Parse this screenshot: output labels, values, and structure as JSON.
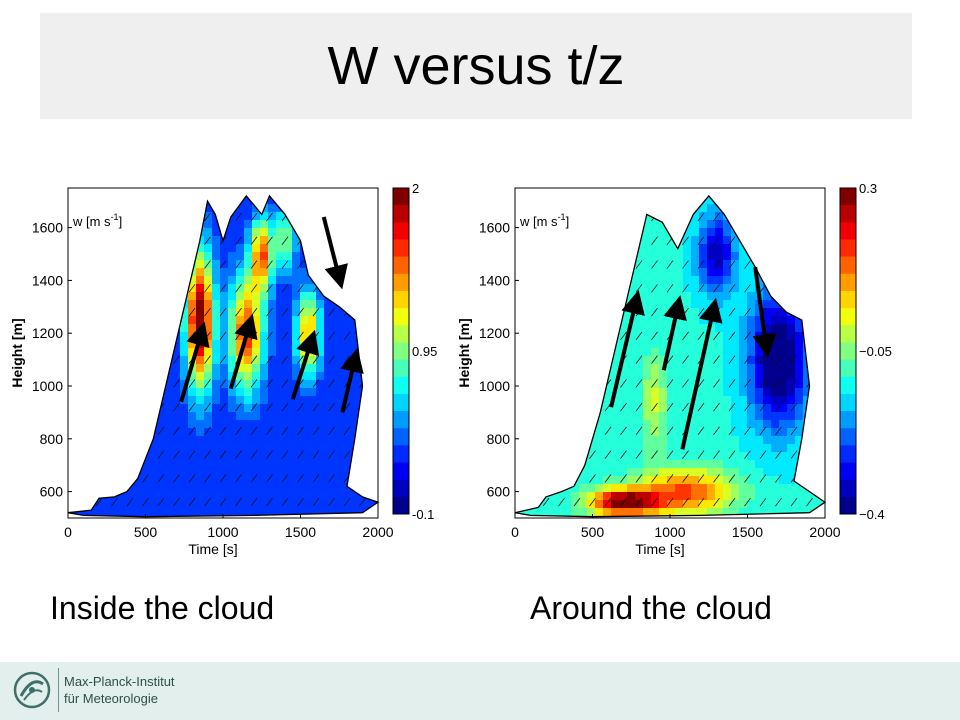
{
  "slide": {
    "title": "W versus t/z",
    "caption_left": "Inside the cloud",
    "caption_right": "Around the cloud",
    "institute_line1": "Max-Planck-Institut",
    "institute_line2": "für Meteorologie",
    "footer_color": "#e3efec"
  },
  "chart_data": [
    {
      "type": "heatmap",
      "panel_label": "w [m s",
      "panel_label_sup": "-1",
      "panel_label_end": "]",
      "xlabel": "Time [s]",
      "ylabel": "Height [m]",
      "xlim": [
        0,
        2000
      ],
      "ylim": [
        500,
        1750
      ],
      "xticks": [
        0,
        500,
        1000,
        1500,
        2000
      ],
      "yticks": [
        600,
        800,
        1000,
        1200,
        1400,
        1600
      ],
      "colorbar": {
        "min": -0.1,
        "max": 2,
        "tick_values": [
          2,
          0.95,
          -0.1
        ],
        "tick_labels": [
          "2",
          "0.95",
          "-0.1"
        ]
      },
      "cloud_outline": [
        [
          0,
          520
        ],
        [
          150,
          530
        ],
        [
          200,
          575
        ],
        [
          300,
          580
        ],
        [
          380,
          600
        ],
        [
          450,
          650
        ],
        [
          550,
          800
        ],
        [
          650,
          1050
        ],
        [
          750,
          1300
        ],
        [
          850,
          1550
        ],
        [
          900,
          1700
        ],
        [
          950,
          1650
        ],
        [
          1000,
          1550
        ],
        [
          1050,
          1640
        ],
        [
          1150,
          1720
        ],
        [
          1250,
          1650
        ],
        [
          1300,
          1720
        ],
        [
          1400,
          1650
        ],
        [
          1500,
          1550
        ],
        [
          1550,
          1420
        ],
        [
          1650,
          1340
        ],
        [
          1750,
          1300
        ],
        [
          1850,
          1250
        ],
        [
          1900,
          1000
        ],
        [
          1850,
          800
        ],
        [
          1800,
          620
        ],
        [
          1900,
          580
        ],
        [
          2000,
          560
        ],
        [
          1900,
          520
        ],
        [
          1200,
          510
        ],
        [
          500,
          505
        ],
        [
          100,
          510
        ]
      ],
      "hotspots": [
        {
          "t": 850,
          "z": 1250,
          "w": 2.0,
          "spread": [
            90,
            260
          ]
        },
        {
          "t": 1150,
          "z": 1200,
          "w": 1.6,
          "spread": [
            110,
            220
          ]
        },
        {
          "t": 1550,
          "z": 1200,
          "w": 1.4,
          "spread": [
            80,
            160
          ]
        },
        {
          "t": 1250,
          "z": 1500,
          "w": 1.5,
          "spread": [
            70,
            140
          ]
        },
        {
          "t": 1400,
          "z": 1550,
          "w": 1.0,
          "spread": [
            70,
            120
          ]
        }
      ],
      "base_w": 0.25,
      "big_arrows": [
        [
          [
            730,
            940
          ],
          [
            860,
            1200
          ]
        ],
        [
          [
            1050,
            990
          ],
          [
            1170,
            1230
          ]
        ],
        [
          [
            1450,
            950
          ],
          [
            1570,
            1170
          ]
        ],
        [
          [
            1770,
            900
          ],
          [
            1850,
            1100
          ]
        ],
        [
          [
            1650,
            1640
          ],
          [
            1750,
            1410
          ]
        ]
      ]
    },
    {
      "type": "heatmap",
      "panel_label": "w [m s",
      "panel_label_sup": "-1",
      "panel_label_end": "]",
      "xlabel": "Time [s]",
      "ylabel": "Height [m]",
      "xlim": [
        0,
        2000
      ],
      "ylim": [
        500,
        1750
      ],
      "xticks": [
        0,
        500,
        1000,
        1500,
        2000
      ],
      "yticks": [
        600,
        800,
        1000,
        1200,
        1400,
        1600
      ],
      "colorbar": {
        "min": -0.4,
        "max": 0.3,
        "tick_values": [
          0.3,
          -0.05,
          -0.4
        ],
        "tick_labels": [
          "0.3",
          "−0.05",
          "−0.4"
        ]
      },
      "cloud_outline": [
        [
          0,
          520
        ],
        [
          150,
          540
        ],
        [
          200,
          580
        ],
        [
          300,
          600
        ],
        [
          380,
          620
        ],
        [
          450,
          700
        ],
        [
          550,
          900
        ],
        [
          650,
          1150
        ],
        [
          750,
          1400
        ],
        [
          850,
          1650
        ],
        [
          950,
          1620
        ],
        [
          1050,
          1520
        ],
        [
          1150,
          1650
        ],
        [
          1250,
          1720
        ],
        [
          1350,
          1650
        ],
        [
          1450,
          1550
        ],
        [
          1550,
          1450
        ],
        [
          1650,
          1340
        ],
        [
          1750,
          1280
        ],
        [
          1850,
          1250
        ],
        [
          1900,
          1000
        ],
        [
          1850,
          800
        ],
        [
          1800,
          640
        ],
        [
          1900,
          600
        ],
        [
          2000,
          560
        ],
        [
          1900,
          520
        ],
        [
          1200,
          510
        ],
        [
          500,
          505
        ],
        [
          100,
          510
        ]
      ],
      "hotspots": [
        {
          "t": 700,
          "z": 560,
          "w": 0.3,
          "spread": [
            220,
            50
          ]
        },
        {
          "t": 1100,
          "z": 600,
          "w": 0.15,
          "spread": [
            300,
            90
          ]
        },
        {
          "t": 1700,
          "z": 1100,
          "w": -0.45,
          "spread": [
            180,
            250
          ]
        },
        {
          "t": 1300,
          "z": 1500,
          "w": -0.35,
          "spread": [
            120,
            150
          ]
        },
        {
          "t": 900,
          "z": 950,
          "w": 0.0,
          "spread": [
            80,
            180
          ]
        }
      ],
      "base_w": -0.12,
      "big_arrows": [
        [
          [
            620,
            920
          ],
          [
            780,
            1320
          ]
        ],
        [
          [
            960,
            1060
          ],
          [
            1050,
            1300
          ]
        ],
        [
          [
            1080,
            760
          ],
          [
            1280,
            1290
          ]
        ],
        [
          [
            1550,
            1450
          ],
          [
            1620,
            1150
          ]
        ]
      ]
    }
  ]
}
